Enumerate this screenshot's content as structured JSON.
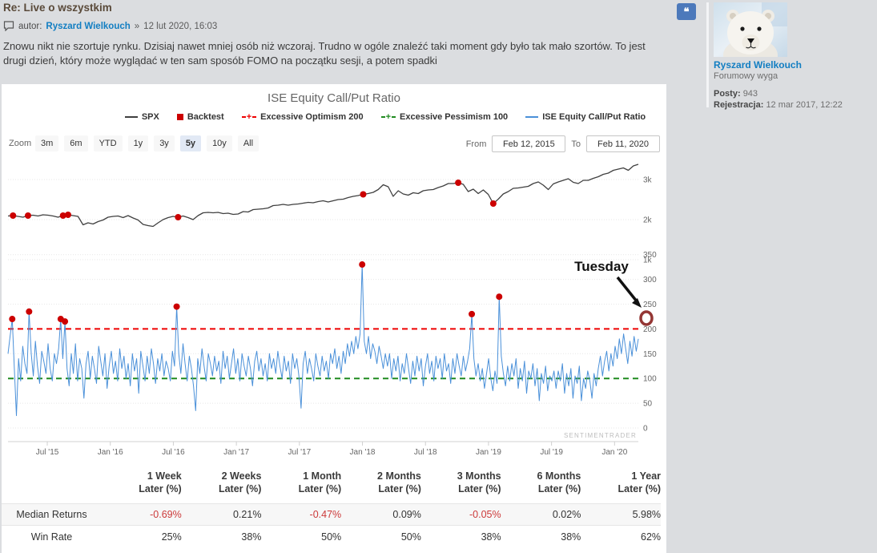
{
  "post": {
    "title": "Re: Live o wszystkim",
    "author_label": "autor:",
    "author": "Ryszard Wielkouch",
    "date_sep": "»",
    "date": "12 lut 2020, 16:03",
    "body_line1": "Znowu nikt nie szortuje rynku. Dzisiaj nawet mniej osób niż wczoraj. Trudno w ogóle znaleźć taki moment gdy było tak mało szortów. To jest",
    "body_line2": "drugi dzień, który może wyglądać w ten sam sposób FOMO na początku sesji, a potem spadki",
    "quote_icon": "❝"
  },
  "profile": {
    "name": "Ryszard Wielkouch",
    "rank": "Forumowy wyga",
    "posts_label": "Posty:",
    "posts": "943",
    "joined_label": "Rejestracja:",
    "joined": "12 mar 2017, 12:22"
  },
  "chart": {
    "title": "ISE Equity Call/Put Ratio",
    "legend": [
      {
        "label": "SPX",
        "marker": "line",
        "color": "#404040"
      },
      {
        "label": "Backtest",
        "marker": "square",
        "color": "#cc0000"
      },
      {
        "label": "Excessive Optimism 200",
        "marker": "dashplus",
        "color": "#ee0000"
      },
      {
        "label": "Excessive Pessimism 100",
        "marker": "dashplus",
        "color": "#1f8a1f"
      },
      {
        "label": "ISE Equity Call/Put Ratio",
        "marker": "line",
        "color": "#4a90d9"
      }
    ],
    "zoom_label": "Zoom",
    "zoom_buttons": [
      "3m",
      "6m",
      "YTD",
      "1y",
      "3y",
      "5y",
      "10y",
      "All"
    ],
    "zoom_selected": "5y",
    "from_label": "From",
    "from_value": "Feb 12, 2015",
    "to_label": "To",
    "to_value": "Feb 11, 2020",
    "watermark": "SENTIMENTRADER",
    "annotation_text": "Tuesday"
  },
  "chart_data": {
    "type": "line",
    "title": "ISE Equity Call/Put Ratio",
    "x_range": [
      "Feb 12, 2015",
      "Feb 11, 2020"
    ],
    "x_ticks": [
      "Jul '15",
      "Jan '16",
      "Jul '16",
      "Jan '17",
      "Jul '17",
      "Jan '18",
      "Jul '18",
      "Jan '19",
      "Jul '19",
      "Jan '20"
    ],
    "panels": [
      {
        "name": "SPX",
        "color": "#404040",
        "yticks": [
          {
            "v": 3000,
            "label": "3k"
          },
          {
            "v": 2000,
            "label": "2k"
          },
          {
            "v": 1000,
            "label": "1k"
          }
        ],
        "values": [
          2090,
          2100,
          2080,
          2060,
          2100,
          2110,
          2090,
          2120,
          2110,
          2090,
          2060,
          2100,
          2120,
          2100,
          2080,
          1870,
          1920,
          1890,
          1950,
          1990,
          2060,
          2080,
          2090,
          2050,
          2100,
          2040,
          1990,
          1880,
          1850,
          1830,
          1920,
          2000,
          2050,
          2080,
          2060,
          2090,
          2050,
          2000,
          2100,
          2170,
          2180,
          2170,
          2180,
          2150,
          2160,
          2130,
          2140,
          2200,
          2190,
          2250,
          2260,
          2270,
          2290,
          2350,
          2360,
          2380,
          2360,
          2380,
          2390,
          2410,
          2430,
          2420,
          2450,
          2470,
          2440,
          2470,
          2500,
          2510,
          2550,
          2580,
          2600,
          2630,
          2650,
          2680,
          2750,
          2870,
          2820,
          2580,
          2720,
          2640,
          2610,
          2670,
          2650,
          2720,
          2740,
          2750,
          2800,
          2840,
          2900,
          2900,
          2920,
          2880,
          2700,
          2760,
          2650,
          2740,
          2630,
          2400,
          2510,
          2640,
          2700,
          2780,
          2790,
          2810,
          2830,
          2900,
          2940,
          2860,
          2750,
          2890,
          2940,
          2980,
          3020,
          2930,
          2900,
          2980,
          2980,
          3030,
          3070,
          3130,
          3160,
          3230,
          3260,
          3290,
          3230,
          3340,
          3380
        ],
        "marker_name": "Backtest",
        "marker_color": "#cc0000",
        "marker_indices": [
          1,
          4,
          11,
          12,
          34,
          71,
          90,
          97
        ]
      },
      {
        "name": "ISE Equity Call/Put Ratio",
        "color": "#4a90d9",
        "yticks": [
          {
            "v": 350,
            "label": "350"
          },
          {
            "v": 300,
            "label": "300"
          },
          {
            "v": 250,
            "label": "250"
          },
          {
            "v": 200,
            "label": "200"
          },
          {
            "v": 150,
            "label": "150"
          },
          {
            "v": 100,
            "label": "100"
          },
          {
            "v": 50,
            "label": "50"
          },
          {
            "v": 0,
            "label": "0"
          }
        ],
        "values": [
          150,
          185,
          220,
          120,
          25,
          140,
          95,
          165,
          130,
          110,
          235,
          150,
          105,
          175,
          125,
          90,
          155,
          135,
          110,
          170,
          120,
          95,
          150,
          130,
          160,
          220,
          140,
          215,
          120,
          85,
          150,
          110,
          170,
          95,
          140,
          120,
          60,
          130,
          155,
          100,
          145,
          120,
          90,
          165,
          135,
          105,
          150,
          80,
          125,
          155,
          110,
          135,
          95,
          160,
          120,
          145,
          100,
          130,
          85,
          150,
          115,
          140,
          70,
          155,
          125,
          95,
          145,
          110,
          160,
          130,
          90,
          140,
          115,
          150,
          105,
          135,
          120,
          95,
          155,
          125,
          245,
          150,
          110,
          170,
          130,
          95,
          145,
          120,
          85,
          35,
          140,
          110,
          160,
          125,
          95,
          150,
          130,
          105,
          145,
          115,
          135,
          90,
          155,
          120,
          145,
          100,
          130,
          160,
          110,
          140,
          95,
          150,
          125,
          105,
          145,
          120,
          85,
          135,
          155,
          115,
          140,
          105,
          130,
          95,
          150,
          120,
          140,
          110,
          155,
          125,
          100,
          145,
          115,
          135,
          90,
          150,
          120,
          140,
          105,
          40,
          130,
          155,
          110,
          140,
          120,
          95,
          150,
          125,
          105,
          145,
          115,
          135,
          100,
          150,
          130,
          160,
          120,
          145,
          110,
          155,
          130,
          170,
          145,
          175,
          150,
          185,
          160,
          190,
          330,
          175,
          150,
          185,
          140,
          170,
          155,
          130,
          165,
          145,
          120,
          150,
          125,
          150,
          100,
          140,
          115,
          145,
          95,
          130,
          110,
          150,
          120,
          90,
          135,
          105,
          145,
          115,
          140,
          85,
          125,
          150,
          110,
          135,
          95,
          145,
          120,
          140,
          100,
          150,
          115,
          130,
          90,
          140,
          110,
          150,
          125,
          105,
          145,
          115,
          135,
          160,
          230,
          140,
          105,
          130,
          95,
          120,
          80,
          110,
          140,
          100,
          75,
          115,
          90,
          265,
          145,
          110,
          85,
          125,
          95,
          130,
          105,
          140,
          80,
          120,
          95,
          135,
          70,
          115,
          100,
          130,
          85,
          120,
          55,
          110,
          90,
          125,
          75,
          105,
          95,
          115,
          80,
          115,
          95,
          130,
          70,
          110,
          85,
          120,
          60,
          105,
          90,
          125,
          55,
          100,
          80,
          115,
          95,
          60,
          110,
          85,
          120,
          145,
          105,
          135,
          155,
          115,
          150,
          125,
          165,
          140,
          180,
          150,
          190,
          160,
          130,
          175,
          145,
          185,
          155,
          180
        ],
        "marker_name": "Backtest",
        "marker_color": "#cc0000",
        "marker_indices": [
          2,
          10,
          25,
          27,
          80,
          168,
          220,
          233
        ],
        "hlines": [
          {
            "name": "Excessive Optimism 200",
            "value": 200,
            "color": "#ee0000"
          },
          {
            "name": "Excessive Pessimism 100",
            "value": 100,
            "color": "#1f8a1f"
          }
        ],
        "annotation": {
          "text": "Tuesday",
          "value": 225
        }
      }
    ]
  },
  "table": {
    "col_headers": [
      [
        "1 Week",
        "Later (%)"
      ],
      [
        "2 Weeks",
        "Later (%)"
      ],
      [
        "1 Month",
        "Later (%)"
      ],
      [
        "2 Months",
        "Later (%)"
      ],
      [
        "3 Months",
        "Later (%)"
      ],
      [
        "6 Months",
        "Later (%)"
      ],
      [
        "1 Year",
        "Later (%)"
      ]
    ],
    "rows": [
      {
        "label": "Median Returns",
        "values": [
          "-0.69%",
          "0.21%",
          "-0.47%",
          "0.09%",
          "-0.05%",
          "0.02%",
          "5.98%"
        ]
      },
      {
        "label": "Win Rate",
        "values": [
          "25%",
          "38%",
          "50%",
          "50%",
          "38%",
          "38%",
          "62%"
        ]
      }
    ]
  }
}
